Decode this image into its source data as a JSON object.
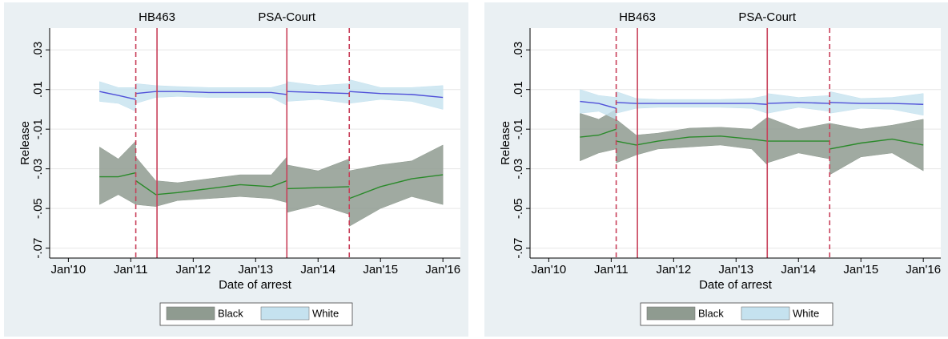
{
  "chart_data": [
    {
      "type": "line",
      "xlabel": "Date of arrest",
      "ylabel": "Release",
      "xlim": [
        2009.7,
        2016.28
      ],
      "ylim": [
        -0.075,
        0.041
      ],
      "grid": true,
      "xticks": [
        {
          "value": 2010,
          "label": "Jan'10"
        },
        {
          "value": 2011,
          "label": "Jan'11"
        },
        {
          "value": 2012,
          "label": "Jan'12"
        },
        {
          "value": 2013,
          "label": "Jan'13"
        },
        {
          "value": 2014,
          "label": "Jan'14"
        },
        {
          "value": 2015,
          "label": "Jan'15"
        },
        {
          "value": 2016,
          "label": "Jan'16"
        }
      ],
      "yticks": [
        {
          "value": 0.03,
          "label": ".03"
        },
        {
          "value": 0.01,
          "label": ".01"
        },
        {
          "value": -0.01,
          "label": "-.01"
        },
        {
          "value": -0.03,
          "label": "-.03"
        },
        {
          "value": -0.05,
          "label": "-.05"
        },
        {
          "value": -0.07,
          "label": "-.07"
        }
      ],
      "vlines": [
        {
          "x": 2011.08,
          "dashed": true
        },
        {
          "x": 2011.42,
          "dashed": false
        },
        {
          "x": 2013.5,
          "dashed": false
        },
        {
          "x": 2014.5,
          "dashed": true
        }
      ],
      "annotations": [
        {
          "text": "HB463",
          "x": 2011.42
        },
        {
          "text": "PSA-Court",
          "x": 2013.5
        }
      ],
      "x": [
        2010.5,
        2010.8,
        2011.08,
        null,
        2011.08,
        2011.4,
        2011.75,
        2012.25,
        2012.75,
        2013.25,
        2013.5,
        null,
        2013.5,
        2014.0,
        2014.5,
        null,
        2014.5,
        2015.0,
        2015.5,
        2016.0
      ],
      "series": [
        {
          "name": "Black",
          "color": "#2a8a2a",
          "band_color": "#8f9b90",
          "values": [
            -0.034,
            -0.034,
            -0.032,
            null,
            -0.036,
            -0.043,
            -0.042,
            -0.04,
            -0.038,
            -0.039,
            -0.036,
            null,
            -0.04,
            -0.0395,
            -0.039,
            null,
            -0.045,
            -0.039,
            -0.035,
            -0.033
          ],
          "lower": [
            -0.048,
            -0.043,
            -0.048,
            null,
            -0.048,
            -0.049,
            -0.046,
            -0.045,
            -0.044,
            -0.045,
            -0.047,
            null,
            -0.052,
            -0.048,
            -0.053,
            null,
            -0.059,
            -0.05,
            -0.044,
            -0.048
          ],
          "upper": [
            -0.019,
            -0.025,
            -0.016,
            null,
            -0.024,
            -0.036,
            -0.037,
            -0.035,
            -0.033,
            -0.033,
            -0.024,
            null,
            -0.028,
            -0.031,
            -0.025,
            null,
            -0.031,
            -0.028,
            -0.026,
            -0.018
          ]
        },
        {
          "name": "White",
          "color": "#5050d8",
          "band_color": "#c5e2ef",
          "values": [
            0.009,
            0.007,
            0.005,
            null,
            0.008,
            0.009,
            0.009,
            0.0085,
            0.0085,
            0.0085,
            0.0075,
            null,
            0.009,
            0.0085,
            0.008,
            null,
            0.009,
            0.008,
            0.0075,
            0.006
          ],
          "lower": [
            0.004,
            0.003,
            -0.001,
            null,
            0.003,
            0.006,
            0.0065,
            0.006,
            0.006,
            0.006,
            0.002,
            null,
            0.004,
            0.005,
            0.003,
            null,
            0.003,
            0.005,
            0.004,
            0.0
          ],
          "upper": [
            0.014,
            0.011,
            0.011,
            null,
            0.013,
            0.012,
            0.0115,
            0.011,
            0.011,
            0.011,
            0.013,
            null,
            0.014,
            0.012,
            0.013,
            null,
            0.015,
            0.011,
            0.011,
            0.012
          ]
        }
      ]
    },
    {
      "type": "line",
      "xlabel": "Date of arrest",
      "ylabel": "Release",
      "xlim": [
        2009.7,
        2016.28
      ],
      "ylim": [
        -0.075,
        0.041
      ],
      "grid": true,
      "xticks": [
        {
          "value": 2010,
          "label": "Jan'10"
        },
        {
          "value": 2011,
          "label": "Jan'11"
        },
        {
          "value": 2012,
          "label": "Jan'12"
        },
        {
          "value": 2013,
          "label": "Jan'13"
        },
        {
          "value": 2014,
          "label": "Jan'14"
        },
        {
          "value": 2015,
          "label": "Jan'15"
        },
        {
          "value": 2016,
          "label": "Jan'16"
        }
      ],
      "yticks": [
        {
          "value": 0.03,
          "label": ".03"
        },
        {
          "value": 0.01,
          "label": ".01"
        },
        {
          "value": -0.01,
          "label": "-.01"
        },
        {
          "value": -0.03,
          "label": "-.03"
        },
        {
          "value": -0.05,
          "label": "-.05"
        },
        {
          "value": -0.07,
          "label": "-.07"
        }
      ],
      "vlines": [
        {
          "x": 2011.08,
          "dashed": true
        },
        {
          "x": 2011.42,
          "dashed": false
        },
        {
          "x": 2013.5,
          "dashed": false
        },
        {
          "x": 2014.5,
          "dashed": true
        }
      ],
      "annotations": [
        {
          "text": "HB463",
          "x": 2011.42
        },
        {
          "text": "PSA-Court",
          "x": 2013.5
        }
      ],
      "x": [
        2010.5,
        2010.8,
        2011.08,
        null,
        2011.08,
        2011.4,
        2011.75,
        2012.25,
        2012.75,
        2013.25,
        2013.5,
        null,
        2013.5,
        2014.0,
        2014.5,
        null,
        2014.5,
        2015.0,
        2015.5,
        2016.0
      ],
      "series": [
        {
          "name": "Black",
          "color": "#2a8a2a",
          "band_color": "#8f9b90",
          "values": [
            -0.014,
            -0.013,
            -0.01,
            null,
            -0.016,
            -0.018,
            -0.016,
            -0.014,
            -0.0135,
            -0.015,
            -0.016,
            null,
            -0.016,
            -0.016,
            -0.016,
            null,
            -0.02,
            -0.017,
            -0.015,
            -0.018
          ],
          "lower": [
            -0.026,
            -0.022,
            -0.02,
            null,
            -0.027,
            -0.023,
            -0.02,
            -0.019,
            -0.018,
            -0.02,
            -0.028,
            null,
            -0.027,
            -0.022,
            -0.025,
            null,
            -0.033,
            -0.024,
            -0.022,
            -0.031
          ],
          "upper": [
            -0.002,
            -0.005,
            0.0,
            null,
            -0.005,
            -0.013,
            -0.012,
            -0.0095,
            -0.009,
            -0.01,
            -0.004,
            null,
            -0.004,
            -0.01,
            -0.007,
            null,
            -0.007,
            -0.01,
            -0.008,
            -0.005
          ]
        },
        {
          "name": "White",
          "color": "#5050d8",
          "band_color": "#c5e2ef",
          "values": [
            0.004,
            0.003,
            0.0005,
            null,
            0.0035,
            0.003,
            0.003,
            0.003,
            0.003,
            0.003,
            0.0025,
            null,
            0.003,
            0.0035,
            0.003,
            null,
            0.0035,
            0.003,
            0.003,
            0.0025
          ],
          "lower": [
            -0.002,
            -0.001,
            -0.005,
            null,
            -0.002,
            0.0005,
            0.001,
            0.001,
            0.001,
            0.0005,
            -0.002,
            null,
            -0.002,
            0.001,
            -0.001,
            null,
            -0.002,
            0.0005,
            0.0,
            -0.003
          ],
          "upper": [
            0.01,
            0.007,
            0.006,
            null,
            0.009,
            0.0055,
            0.005,
            0.005,
            0.005,
            0.0055,
            0.007,
            null,
            0.008,
            0.006,
            0.007,
            null,
            0.009,
            0.0055,
            0.006,
            0.008
          ]
        }
      ]
    }
  ]
}
